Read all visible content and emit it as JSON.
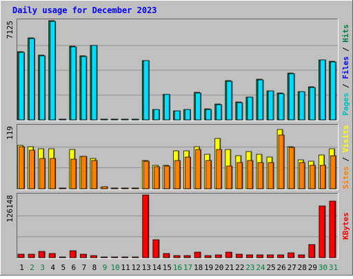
{
  "colors": {
    "background": "#c0c0c0",
    "plot_background": "#c0c0c0",
    "gridline": "#909090",
    "title_text": "#0000ff",
    "weekday_label": "#000000",
    "weekend_label": "#008040",
    "pages": "#00c0c0",
    "files": "#00ddff",
    "hits": "#008040",
    "visits": "#ffff00",
    "sites": "#ff8000",
    "kbytes": "#ff0000"
  },
  "chart_data": {
    "type": "bar",
    "title": "Daily usage for December 2023",
    "days": [
      "1",
      "2",
      "3",
      "4",
      "5",
      "6",
      "7",
      "8",
      "9",
      "10",
      "11",
      "12",
      "13",
      "14",
      "15",
      "16",
      "17",
      "18",
      "19",
      "20",
      "21",
      "22",
      "23",
      "24",
      "25",
      "26",
      "27",
      "28",
      "29",
      "30",
      "31"
    ],
    "weekend_days": [
      "2",
      "3",
      "9",
      "10",
      "16",
      "17",
      "23",
      "24",
      "30",
      "31"
    ],
    "panels": [
      {
        "name": "hits-files-pages",
        "y_max_label": "7125",
        "ylim": [
          0,
          7125
        ],
        "side_label": [
          {
            "text": "Pages",
            "color": "#00c0c0"
          },
          {
            "text": " / ",
            "color": "#000000"
          },
          {
            "text": "Files",
            "color": "#0000ff"
          },
          {
            "text": " / ",
            "color": "#000000"
          },
          {
            "text": "Hits",
            "color": "#008040"
          }
        ],
        "series": [
          {
            "name": "Hits",
            "values": [
              4880,
              5880,
              4650,
              7120,
              0,
              5280,
              4600,
              5360,
              0,
              0,
              0,
              0,
              4270,
              760,
              1830,
              650,
              760,
              1960,
              780,
              1120,
              2800,
              1270,
              1650,
              2900,
              2100,
              1930,
              3350,
              2050,
              2360,
              4320,
              4200
            ]
          },
          {
            "name": "Files",
            "values": [
              4860,
              5840,
              4610,
              7080,
              0,
              5240,
              4550,
              5320,
              0,
              0,
              0,
              0,
              4240,
              740,
              1810,
              640,
              740,
              1910,
              760,
              1100,
              2770,
              1250,
              1630,
              2870,
              2070,
              1900,
              3300,
              2030,
              2340,
              4300,
              4170
            ]
          }
        ]
      },
      {
        "name": "visits-sites",
        "y_max_label": "119",
        "ylim": [
          0,
          119
        ],
        "side_label": [
          {
            "text": "Sites",
            "color": "#ff8000"
          },
          {
            "text": " / ",
            "color": "#000000"
          },
          {
            "text": "Visits",
            "color": "#ffff00"
          }
        ],
        "series": [
          {
            "name": "Visits",
            "values": [
              83,
              80,
              76,
              76,
              0,
              74,
              61,
              57,
              3,
              0,
              0,
              0,
              54,
              44,
              45,
              72,
              72,
              80,
              66,
              95,
              74,
              63,
              71,
              65,
              60,
              113,
              80,
              55,
              52,
              64,
              76
            ]
          },
          {
            "name": "Sites",
            "values": [
              80,
              73,
              58,
              58,
              0,
              56,
              62,
              54,
              4,
              0,
              0,
              0,
              52,
              42,
              43,
              53,
              60,
              75,
              53,
              75,
              43,
              50,
              54,
              50,
              50,
              102,
              78,
              50,
              45,
              45,
              63
            ]
          }
        ]
      },
      {
        "name": "kbytes",
        "y_max_label": "126148",
        "ylim": [
          0,
          126148
        ],
        "side_label": [
          {
            "text": "KBytes",
            "color": "#ff0000"
          }
        ],
        "series": [
          {
            "name": "KBytes",
            "values": [
              7500,
              7500,
              13000,
              9000,
              0,
              14500,
              6500,
              4500,
              0,
              0,
              0,
              0,
              126000,
              36500,
              7800,
              3800,
              3800,
              10500,
              4500,
              6200,
              11500,
              7000,
              6200,
              6200,
              6000,
              6000,
              10000,
              6200,
              27000,
              104000,
              114000
            ]
          }
        ]
      }
    ]
  }
}
